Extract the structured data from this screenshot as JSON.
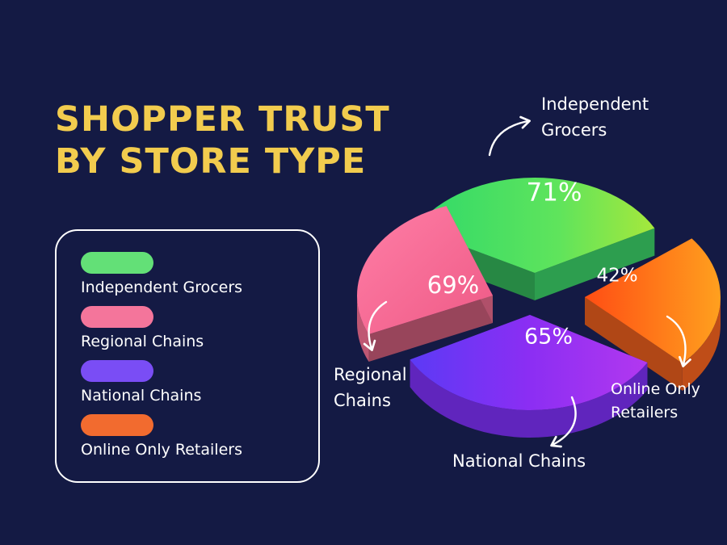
{
  "title_lines": [
    "SHOPPER TRUST",
    "BY STORE TYPE"
  ],
  "colors": {
    "background": "#141a44",
    "title": "#f2cc4e",
    "text": "#ffffff"
  },
  "chart_data": {
    "type": "pie",
    "title": "SHOPPER TRUST BY STORE TYPE",
    "style": "3d-exploded",
    "legend_position": "left",
    "categories": [
      "Independent Grocers",
      "Regional Chains",
      "National Chains",
      "Online Only Retailers"
    ],
    "values": [
      71,
      69,
      65,
      42
    ],
    "value_labels": [
      "71%",
      "69%",
      "65%",
      "42%"
    ],
    "unit": "%",
    "colors": [
      "#3fdc6e",
      "#f56f93",
      "#7b2ff2",
      "#f5631f"
    ]
  },
  "legend": {
    "items": [
      {
        "label": "Independent Grocers",
        "color": "#63e077"
      },
      {
        "label": "Regional Chains",
        "color": "#f4759b"
      },
      {
        "label": "National Chains",
        "color": "#7a4df5"
      },
      {
        "label": "Online Only Retailers",
        "color": "#f26b2f"
      }
    ]
  },
  "callouts": [
    {
      "lines": [
        "Independent",
        "Grocers"
      ]
    },
    {
      "lines": [
        "Regional",
        "Chains"
      ]
    },
    {
      "lines": [
        "National Chains"
      ]
    },
    {
      "lines": [
        "Online Only",
        "Retailers"
      ]
    }
  ]
}
